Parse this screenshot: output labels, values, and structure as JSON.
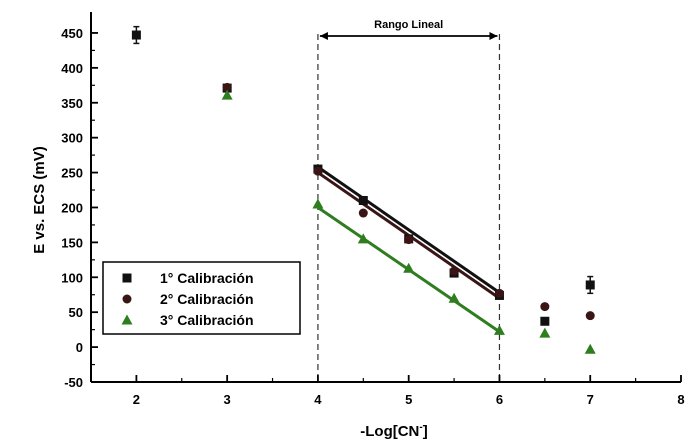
{
  "chart_data": {
    "type": "scatter",
    "xlabel": "-Log[CN",
    "xlabel_sup": "-",
    "xlabel_close": "]",
    "ylabel": "E vs. ECS (mV)",
    "xlim": [
      1.5,
      8
    ],
    "ylim": [
      -50,
      480
    ],
    "x_ticks": [
      2,
      3,
      4,
      5,
      6,
      7,
      8
    ],
    "y_ticks": [
      -50,
      0,
      50,
      100,
      150,
      200,
      250,
      300,
      350,
      400,
      450
    ],
    "series": [
      {
        "name": "1° Calibración",
        "marker": "square",
        "color": "#111111",
        "points": [
          {
            "x": 2,
            "y": 447,
            "err": 12
          },
          {
            "x": 3,
            "y": 371,
            "err": 0
          },
          {
            "x": 4,
            "y": 255,
            "err": 0
          },
          {
            "x": 4.5,
            "y": 210,
            "err": 0
          },
          {
            "x": 5,
            "y": 155,
            "err": 0
          },
          {
            "x": 5.5,
            "y": 106,
            "err": 0
          },
          {
            "x": 6,
            "y": 74,
            "err": 0
          },
          {
            "x": 6.5,
            "y": 37,
            "err": 0
          },
          {
            "x": 7,
            "y": 89,
            "err": 12
          }
        ],
        "fit": {
          "x": [
            4,
            6
          ],
          "y": [
            258,
            78
          ]
        }
      },
      {
        "name": "2° Calibración",
        "marker": "circle",
        "color": "#3a1515",
        "points": [
          {
            "x": 3,
            "y": 372,
            "err": 0
          },
          {
            "x": 4,
            "y": 252,
            "err": 0
          },
          {
            "x": 4.5,
            "y": 192,
            "err": 0
          },
          {
            "x": 5,
            "y": 154,
            "err": 0
          },
          {
            "x": 5.5,
            "y": 109,
            "err": 0
          },
          {
            "x": 6,
            "y": 77,
            "err": 0
          },
          {
            "x": 6.5,
            "y": 58,
            "err": 0
          },
          {
            "x": 7,
            "y": 45,
            "err": 0
          }
        ],
        "fit": {
          "x": [
            4,
            6
          ],
          "y": [
            250,
            70
          ]
        }
      },
      {
        "name": "3° Calibración",
        "marker": "triangle",
        "color": "#2e7d1f",
        "points": [
          {
            "x": 3,
            "y": 361,
            "err": 0
          },
          {
            "x": 4,
            "y": 205,
            "err": 0
          },
          {
            "x": 4.5,
            "y": 155,
            "err": 0
          },
          {
            "x": 5,
            "y": 113,
            "err": 0
          },
          {
            "x": 5.5,
            "y": 70,
            "err": 0
          },
          {
            "x": 6,
            "y": 24,
            "err": 0
          },
          {
            "x": 6.5,
            "y": 20,
            "err": 0
          },
          {
            "x": 7,
            "y": -3,
            "err": 0
          }
        ],
        "fit": {
          "x": [
            4,
            6
          ],
          "y": [
            200,
            22
          ]
        }
      }
    ],
    "annotation": {
      "label": "Rango Lineal",
      "x_start": 4,
      "x_end": 6
    },
    "legend": {
      "placement": "bottom-left"
    },
    "grid": false
  }
}
